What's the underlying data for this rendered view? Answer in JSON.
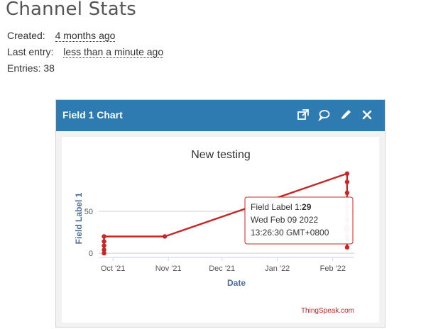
{
  "page": {
    "title": "Channel Stats",
    "created_label": "Created:",
    "created_value": "4 months ago",
    "last_entry_label": "Last entry:",
    "last_entry_value": "less than a minute ago",
    "entries_text": "Entries: 38"
  },
  "panel": {
    "title": "Field 1 Chart",
    "icons": [
      "external-link-icon",
      "comment-icon",
      "pencil-icon",
      "close-icon"
    ]
  },
  "colors": {
    "header_bg": "#2e7bb1",
    "series": "#c62828",
    "axis_label": "#4b6c9a",
    "credit": "#c62828"
  },
  "chart_data": {
    "type": "line",
    "title": "New testing",
    "xlabel": "Date",
    "ylabel": "Field Label 1",
    "x_ticks": [
      "Oct '21",
      "Nov '21",
      "Dec '21",
      "Jan '22",
      "Feb '22"
    ],
    "y_ticks": [
      "0",
      "50"
    ],
    "xlim": [
      "2021-09-23",
      "2022-02-13"
    ],
    "ylim": [
      -5,
      105
    ],
    "grid": true,
    "legend": "none",
    "series": [
      {
        "x": [
          "2021-09-26",
          "2021-09-26",
          "2021-09-26",
          "2021-09-26",
          "2021-09-26",
          "2021-10-30",
          "2022-02-09",
          "2022-02-09",
          "2022-02-09",
          "2022-02-09",
          "2022-02-09",
          "2022-02-09",
          "2022-02-09",
          "2022-02-09",
          "2022-02-09"
        ],
        "y": [
          0,
          4,
          9,
          14,
          20,
          20,
          95,
          85,
          72,
          55,
          40,
          29,
          20,
          16,
          7
        ]
      }
    ],
    "tooltip": {
      "label": "Field Label 1:",
      "value": "29",
      "line1": "Wed Feb 09 2022",
      "line2": "13:26:30 GMT+0800"
    },
    "credit": "ThingSpeak.com"
  }
}
